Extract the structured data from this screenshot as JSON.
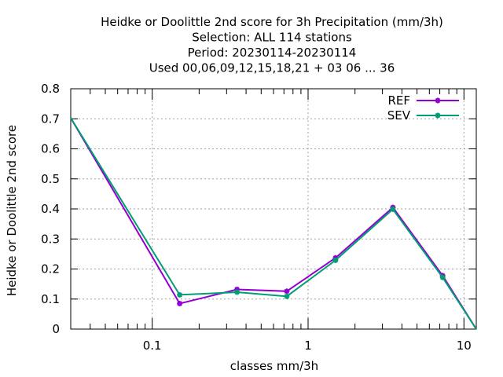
{
  "chart_data": {
    "type": "line",
    "title_lines": [
      "Heidke or Doolittle 2nd score  for 3h Precipitation (mm/3h)",
      "Selection: ALL    114 stations",
      "Period: 20230114-20230114",
      "Used  00,06,09,12,15,18,21  + 03 06 ... 36"
    ],
    "xlabel": "classes mm/3h",
    "ylabel": "Heidke or Doolittle 2nd score",
    "xscale": "log",
    "xlim": [
      0.03,
      12
    ],
    "ylim": [
      0,
      0.8
    ],
    "x_tick_labels": [
      "0.1",
      "1",
      "10"
    ],
    "y_tick_labels": [
      "0",
      "0.1",
      "0.2",
      "0.3",
      "0.4",
      "0.5",
      "0.6",
      "0.7",
      "0.8"
    ],
    "grid": true,
    "legend_position": "top-right",
    "x": [
      0.03,
      0.15,
      0.35,
      0.73,
      1.5,
      3.5,
      7.3,
      12
    ],
    "series": [
      {
        "name": "REF",
        "color": "#9400d3",
        "values": [
          0.703,
          0.085,
          0.132,
          0.126,
          0.237,
          0.405,
          0.178,
          0.0
        ]
      },
      {
        "name": "SEV",
        "color": "#009e73",
        "values": [
          0.703,
          0.114,
          0.123,
          0.109,
          0.229,
          0.399,
          0.172,
          0.0
        ]
      }
    ]
  }
}
